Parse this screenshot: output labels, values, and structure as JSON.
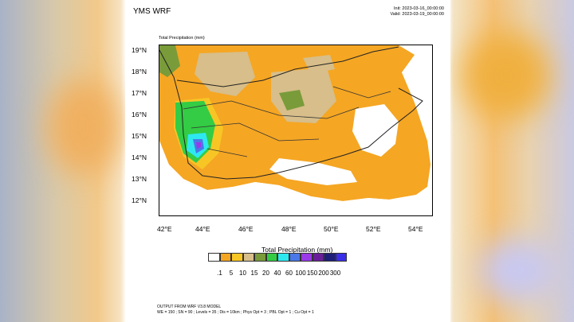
{
  "title": "YMS WRF",
  "init_time": "Init: 2023-03-16_00:00:00",
  "valid_time": "Valid: 2023-03-19_00:00:00",
  "field_label": "Total Precipitation   (mm)",
  "lat_labels": [
    "19°N",
    "18°N",
    "17°N",
    "16°N",
    "15°N",
    "14°N",
    "13°N",
    "12°N"
  ],
  "lon_labels": [
    "42°E",
    "44°E",
    "46°E",
    "48°E",
    "50°E",
    "52°E",
    "54°E"
  ],
  "colorbar": {
    "title": "Total Precipitation   (mm)",
    "levels": [
      ".1",
      "5",
      "10",
      "15",
      "20",
      "40",
      "60",
      "100",
      "150",
      "200",
      "300"
    ],
    "colors": [
      "#ffffff",
      "#f5a623",
      "#f7c625",
      "#d7be8a",
      "#7a9b3a",
      "#33cc44",
      "#2ee8f0",
      "#4a78e8",
      "#9a3ae8",
      "#6a1e9a",
      "#1e1e7a",
      "#3a2ee8"
    ]
  },
  "footer": {
    "line1": "OUTPUT FROM WRF V3.8 MODEL",
    "line2": "WE = 150 ; SN = 90 ; Levels = 35 ; Dis = 10km ; Phys Opt = 3 ; PBL Opt = 1 ; Cu Opt = 1"
  }
}
